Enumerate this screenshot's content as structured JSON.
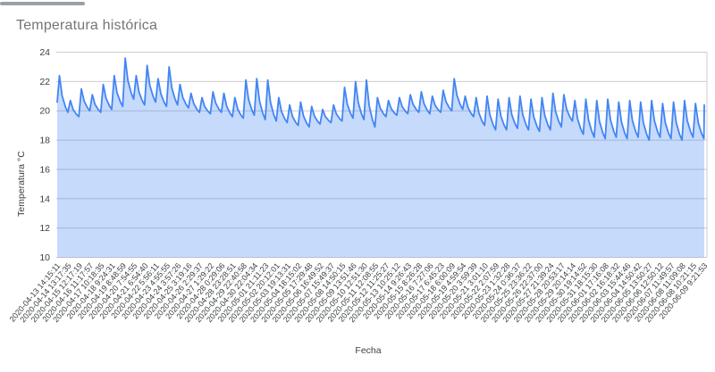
{
  "page": {
    "background": "#ffffff"
  },
  "chart_data": {
    "type": "area",
    "title": "Temperatura histórica",
    "xlabel": "Fecha",
    "ylabel": "Temperatura °C",
    "ylim": [
      10,
      24
    ],
    "y_tick_step": 2,
    "grid": true,
    "legend": "none",
    "line_color": "#4285f4",
    "fill_color": "rgba(66,133,244,0.3)",
    "gridline_color": "#cccccc",
    "axis_label_color": "#3c4043",
    "title_color": "#757575",
    "x_labels": [
      "2020-04-13 14:15:11",
      "2020-04-14 13:17:35",
      "2020-04-15 12:17:19",
      "2020-04-16 11:17:57",
      "2020-04-17 10:18:35",
      "2020-04-18 9:24:31",
      "2020-04-19 8:48:59",
      "2020-04-20 7:54:55",
      "2020-04-21 6:54:40",
      "2020-04-22 5:56:11",
      "2020-04-23 4:55:55",
      "2020-04-24 3:57:26",
      "2020-04-25 3:19:16",
      "2020-04-26 2:29:37",
      "2020-04-27 1:29:22",
      "2020-04-28 0:29:06",
      "2020-04-28 23:28:51",
      "2020-04-29 22:40:58",
      "2020-04-30 22:04:34",
      "2020-05-01 21:11:23",
      "2020-05-02 20:12:01",
      "2020-05-03 19:13:31",
      "2020-05-04 18:15:02",
      "2020-05-05 17:29:48",
      "2020-05-06 16:49:52",
      "2020-05-07 15:49:37",
      "2020-05-08 14:50:15",
      "2020-05-09 13:51:46",
      "2020-05-10 12:51:30",
      "2020-05-11 12:08:55",
      "2020-05-12 11:25:27",
      "2020-05-13 10:25:12",
      "2020-05-14 9:26:43",
      "2020-05-15 8:26:28",
      "2020-05-16 7:27:06",
      "2020-05-17 6:45:23",
      "2020-05-18 6:00:09",
      "2020-05-19 4:59:54",
      "2020-05-20 3:59:39",
      "2020-05-21 3:01:10",
      "2020-05-22 2:07:59",
      "2020-05-23 1:32:28",
      "2020-05-24 0:36:37",
      "2020-05-25 23:36:22",
      "2020-05-26 22:37:00",
      "2020-05-27 21:39:24",
      "2020-05-28 20:53:17",
      "2020-05-29 20:14:14",
      "2020-05-30 19:14:52",
      "2020-05-31 18:15:30",
      "2020-06-01 17:16:08",
      "2020-06-02 16:18:32",
      "2020-06-03 15:44:46",
      "2020-06-04 14:50:42",
      "2020-06-05 13:50:27",
      "2020-06-06 12:50:12",
      "2020-06-07 11:49:57",
      "2020-06-08 11:09:08",
      "2020-06-08 10:21:15",
      "2020-06-09 9:21:53"
    ],
    "series": {
      "start_value": 20.6,
      "daily_peak_trough": [
        [
          22.4,
          19.9
        ],
        [
          20.7,
          19.6
        ],
        [
          21.5,
          20.0
        ],
        [
          21.1,
          19.9
        ],
        [
          21.8,
          20.1
        ],
        [
          22.4,
          20.3
        ],
        [
          23.6,
          20.8
        ],
        [
          22.4,
          20.4
        ],
        [
          23.1,
          20.6
        ],
        [
          22.2,
          20.3
        ],
        [
          23.0,
          20.4
        ],
        [
          21.8,
          20.2
        ],
        [
          21.2,
          19.9
        ],
        [
          20.9,
          19.8
        ],
        [
          21.3,
          19.9
        ],
        [
          21.2,
          19.6
        ],
        [
          20.9,
          19.5
        ],
        [
          22.1,
          19.7
        ],
        [
          22.2,
          19.4
        ],
        [
          22.1,
          19.3
        ],
        [
          20.9,
          19.2
        ],
        [
          20.4,
          19.0
        ],
        [
          20.6,
          18.9
        ],
        [
          20.3,
          19.1
        ],
        [
          20.1,
          19.2
        ],
        [
          20.4,
          19.3
        ],
        [
          21.6,
          19.5
        ],
        [
          22.0,
          19.4
        ],
        [
          22.1,
          18.9
        ],
        [
          20.9,
          19.6
        ],
        [
          20.7,
          19.7
        ],
        [
          20.9,
          19.8
        ],
        [
          21.1,
          19.9
        ],
        [
          21.3,
          19.8
        ],
        [
          21.0,
          19.9
        ],
        [
          21.4,
          20.0
        ],
        [
          22.2,
          20.1
        ],
        [
          21.0,
          19.6
        ],
        [
          20.9,
          19.0
        ],
        [
          21.0,
          18.7
        ],
        [
          20.8,
          18.7
        ],
        [
          20.9,
          18.8
        ],
        [
          21.0,
          18.7
        ],
        [
          20.8,
          18.6
        ],
        [
          20.9,
          18.7
        ],
        [
          21.2,
          18.9
        ],
        [
          21.1,
          19.3
        ],
        [
          20.7,
          18.4
        ],
        [
          20.8,
          18.2
        ],
        [
          20.7,
          18.1
        ],
        [
          20.8,
          18.2
        ],
        [
          20.6,
          18.1
        ],
        [
          20.7,
          18.2
        ],
        [
          20.6,
          18.0
        ],
        [
          20.7,
          18.2
        ],
        [
          20.5,
          18.1
        ],
        [
          20.6,
          18.0
        ],
        [
          20.7,
          18.2
        ],
        [
          20.5,
          18.1
        ],
        [
          20.4,
          null
        ]
      ]
    }
  }
}
